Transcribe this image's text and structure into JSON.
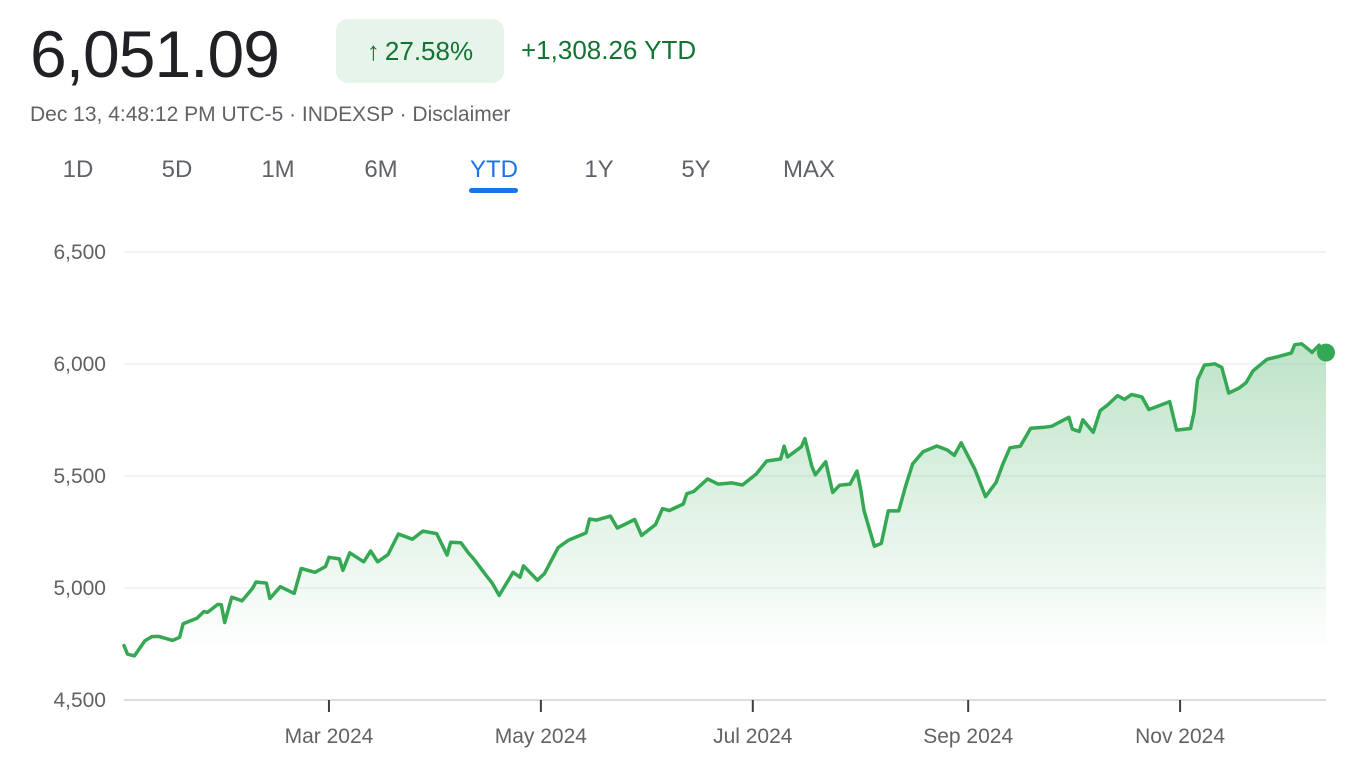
{
  "header": {
    "price": "6,051.09",
    "change_percent": "27.58%",
    "change_arrow_icon": "arrow-up-icon",
    "change_absolute": "+1,308.26 YTD",
    "meta_text": "Dec 13, 4:48:12 PM UTC-5 · INDEXSP · ",
    "disclaimer_label": "Disclaimer"
  },
  "tabs": [
    {
      "label": "1D",
      "active": false
    },
    {
      "label": "5D",
      "active": false
    },
    {
      "label": "1M",
      "active": false
    },
    {
      "label": "6M",
      "active": false
    },
    {
      "label": "YTD",
      "active": true
    },
    {
      "label": "1Y",
      "active": false
    },
    {
      "label": "5Y",
      "active": false
    },
    {
      "label": "MAX",
      "active": false
    }
  ],
  "colors": {
    "positive": "#137333",
    "badge_bg": "#e6f4ea",
    "line": "#34a853",
    "accent_tab": "#1a73e8",
    "grid": "#e8eaed",
    "axis_text": "#5f6368"
  },
  "chart_data": {
    "type": "area",
    "title": "",
    "xlabel": "",
    "ylabel": "",
    "ylim": [
      4500,
      6500
    ],
    "yticks": [
      6500,
      6000,
      5500,
      5000,
      4500
    ],
    "ytick_labels": [
      "6,500",
      "6,000",
      "5,500",
      "5,000",
      "4,500"
    ],
    "xlim": [
      "2024-01-02",
      "2024-12-13"
    ],
    "xticks": [
      "2024-03-01",
      "2024-05-01",
      "2024-07-01",
      "2024-09-01",
      "2024-11-01"
    ],
    "xtick_labels": [
      "Mar 2024",
      "May 2024",
      "Jul 2024",
      "Sep 2024",
      "Nov 2024"
    ],
    "grid": true,
    "series": [
      {
        "color": "#34a853",
        "points": [
          [
            "2024-01-02",
            4743
          ],
          [
            "2024-01-03",
            4705
          ],
          [
            "2024-01-05",
            4697
          ],
          [
            "2024-01-08",
            4764
          ],
          [
            "2024-01-10",
            4783
          ],
          [
            "2024-01-12",
            4784
          ],
          [
            "2024-01-16",
            4766
          ],
          [
            "2024-01-18",
            4780
          ],
          [
            "2024-01-19",
            4840
          ],
          [
            "2024-01-23",
            4865
          ],
          [
            "2024-01-25",
            4895
          ],
          [
            "2024-01-26",
            4891
          ],
          [
            "2024-01-29",
            4927
          ],
          [
            "2024-01-30",
            4925
          ],
          [
            "2024-01-31",
            4846
          ],
          [
            "2024-02-02",
            4959
          ],
          [
            "2024-02-05",
            4943
          ],
          [
            "2024-02-08",
            4998
          ],
          [
            "2024-02-09",
            5027
          ],
          [
            "2024-02-12",
            5022
          ],
          [
            "2024-02-13",
            4953
          ],
          [
            "2024-02-16",
            5006
          ],
          [
            "2024-02-20",
            4976
          ],
          [
            "2024-02-22",
            5087
          ],
          [
            "2024-02-26",
            5070
          ],
          [
            "2024-02-29",
            5096
          ],
          [
            "2024-03-01",
            5137
          ],
          [
            "2024-03-04",
            5130
          ],
          [
            "2024-03-05",
            5079
          ],
          [
            "2024-03-07",
            5157
          ],
          [
            "2024-03-11",
            5117
          ],
          [
            "2024-03-13",
            5165
          ],
          [
            "2024-03-15",
            5117
          ],
          [
            "2024-03-18",
            5149
          ],
          [
            "2024-03-21",
            5241
          ],
          [
            "2024-03-25",
            5218
          ],
          [
            "2024-03-28",
            5254
          ],
          [
            "2024-04-01",
            5243
          ],
          [
            "2024-04-04",
            5147
          ],
          [
            "2024-04-05",
            5204
          ],
          [
            "2024-04-08",
            5202
          ],
          [
            "2024-04-10",
            5160
          ],
          [
            "2024-04-12",
            5123
          ],
          [
            "2024-04-15",
            5061
          ],
          [
            "2024-04-17",
            5022
          ],
          [
            "2024-04-19",
            4967
          ],
          [
            "2024-04-23",
            5070
          ],
          [
            "2024-04-25",
            5048
          ],
          [
            "2024-04-26",
            5099
          ],
          [
            "2024-04-30",
            5035
          ],
          [
            "2024-05-02",
            5064
          ],
          [
            "2024-05-06",
            5181
          ],
          [
            "2024-05-09",
            5214
          ],
          [
            "2024-05-14",
            5246
          ],
          [
            "2024-05-15",
            5308
          ],
          [
            "2024-05-17",
            5303
          ],
          [
            "2024-05-21",
            5321
          ],
          [
            "2024-05-23",
            5268
          ],
          [
            "2024-05-28",
            5306
          ],
          [
            "2024-05-30",
            5235
          ],
          [
            "2024-06-03",
            5283
          ],
          [
            "2024-06-05",
            5354
          ],
          [
            "2024-06-07",
            5346
          ],
          [
            "2024-06-11",
            5375
          ],
          [
            "2024-06-12",
            5421
          ],
          [
            "2024-06-14",
            5431
          ],
          [
            "2024-06-18",
            5487
          ],
          [
            "2024-06-21",
            5464
          ],
          [
            "2024-06-25",
            5469
          ],
          [
            "2024-06-28",
            5460
          ],
          [
            "2024-07-02",
            5509
          ],
          [
            "2024-07-05",
            5567
          ],
          [
            "2024-07-09",
            5576
          ],
          [
            "2024-07-10",
            5633
          ],
          [
            "2024-07-11",
            5585
          ],
          [
            "2024-07-15",
            5631
          ],
          [
            "2024-07-16",
            5667
          ],
          [
            "2024-07-18",
            5544
          ],
          [
            "2024-07-19",
            5505
          ],
          [
            "2024-07-22",
            5564
          ],
          [
            "2024-07-24",
            5427
          ],
          [
            "2024-07-26",
            5459
          ],
          [
            "2024-07-29",
            5464
          ],
          [
            "2024-07-31",
            5522
          ],
          [
            "2024-08-01",
            5446
          ],
          [
            "2024-08-02",
            5346
          ],
          [
            "2024-08-05",
            5186
          ],
          [
            "2024-08-07",
            5199
          ],
          [
            "2024-08-09",
            5344
          ],
          [
            "2024-08-12",
            5344
          ],
          [
            "2024-08-14",
            5455
          ],
          [
            "2024-08-16",
            5554
          ],
          [
            "2024-08-19",
            5608
          ],
          [
            "2024-08-21",
            5621
          ],
          [
            "2024-08-23",
            5634
          ],
          [
            "2024-08-26",
            5616
          ],
          [
            "2024-08-28",
            5592
          ],
          [
            "2024-08-30",
            5648
          ],
          [
            "2024-09-03",
            5528
          ],
          [
            "2024-09-06",
            5408
          ],
          [
            "2024-09-09",
            5471
          ],
          [
            "2024-09-11",
            5554
          ],
          [
            "2024-09-13",
            5626
          ],
          [
            "2024-09-16",
            5633
          ],
          [
            "2024-09-19",
            5713
          ],
          [
            "2024-09-23",
            5718
          ],
          [
            "2024-09-25",
            5722
          ],
          [
            "2024-09-27",
            5738
          ],
          [
            "2024-09-30",
            5762
          ],
          [
            "2024-10-01",
            5709
          ],
          [
            "2024-10-03",
            5699
          ],
          [
            "2024-10-04",
            5751
          ],
          [
            "2024-10-07",
            5695
          ],
          [
            "2024-10-09",
            5792
          ],
          [
            "2024-10-11",
            5815
          ],
          [
            "2024-10-14",
            5859
          ],
          [
            "2024-10-16",
            5842
          ],
          [
            "2024-10-18",
            5864
          ],
          [
            "2024-10-21",
            5853
          ],
          [
            "2024-10-23",
            5797
          ],
          [
            "2024-10-25",
            5808
          ],
          [
            "2024-10-29",
            5832
          ],
          [
            "2024-10-31",
            5705
          ],
          [
            "2024-11-04",
            5712
          ],
          [
            "2024-11-05",
            5782
          ],
          [
            "2024-11-06",
            5929
          ],
          [
            "2024-11-08",
            5995
          ],
          [
            "2024-11-11",
            6001
          ],
          [
            "2024-11-13",
            5985
          ],
          [
            "2024-11-15",
            5870
          ],
          [
            "2024-11-18",
            5893
          ],
          [
            "2024-11-20",
            5917
          ],
          [
            "2024-11-22",
            5969
          ],
          [
            "2024-11-26",
            6021
          ],
          [
            "2024-11-29",
            6032
          ],
          [
            "2024-12-03",
            6049
          ],
          [
            "2024-12-04",
            6086
          ],
          [
            "2024-12-06",
            6090
          ],
          [
            "2024-12-09",
            6052
          ],
          [
            "2024-12-11",
            6084
          ],
          [
            "2024-12-12",
            6051
          ],
          [
            "2024-12-13",
            6051
          ]
        ]
      }
    ]
  }
}
